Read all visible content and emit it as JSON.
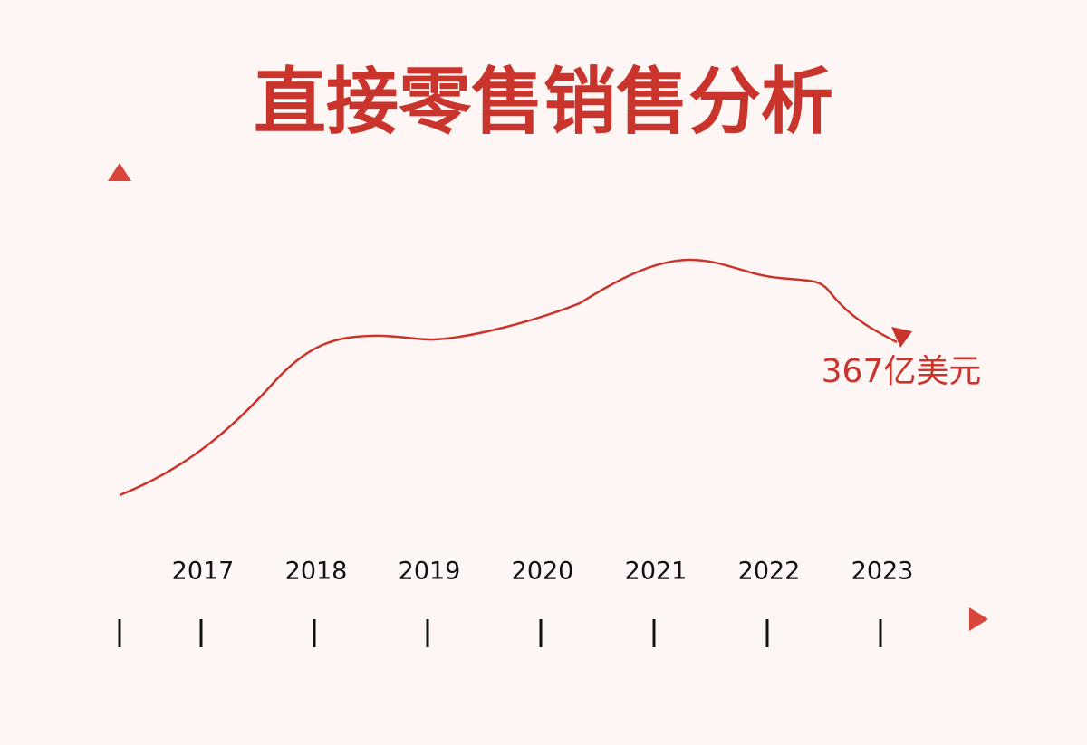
{
  "chart_data": {
    "type": "line",
    "title": "直接零售销售分析",
    "categories": [
      "2017",
      "2018",
      "2019",
      "2020",
      "2021",
      "2022",
      "2023"
    ],
    "annotation": "367亿美元"
  }
}
